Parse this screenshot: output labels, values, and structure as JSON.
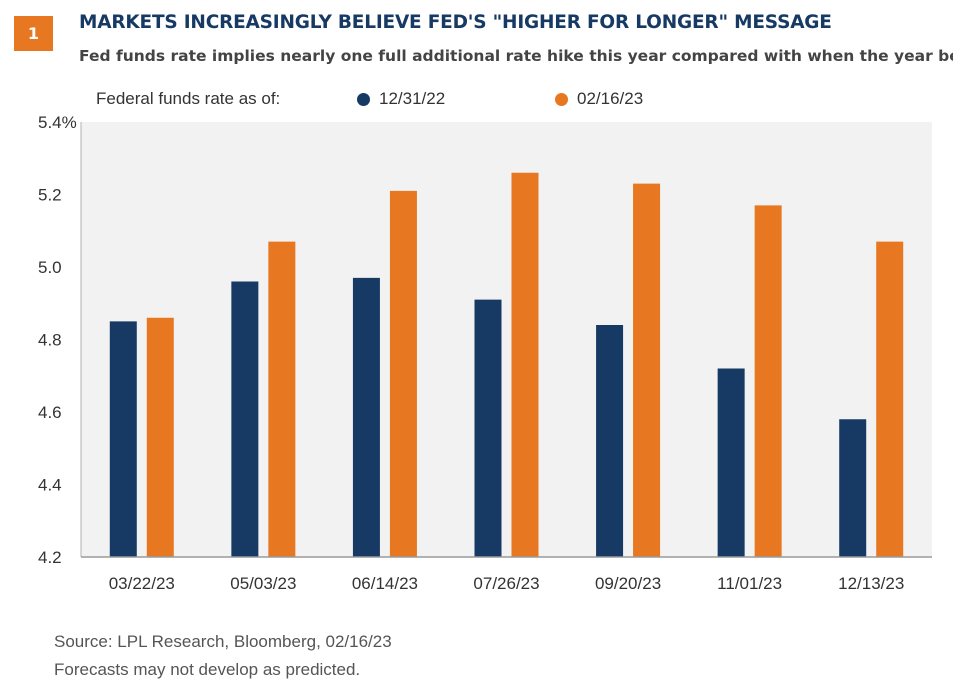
{
  "header": {
    "badge_number": "1",
    "title": "MARKETS INCREASINGLY BELIEVE FED'S \"HIGHER FOR LONGER\" MESSAGE",
    "subtitle": "Fed funds rate implies nearly one full additional rate hike this year compared with when the year began"
  },
  "legend": {
    "title": "Federal funds rate as of:"
  },
  "colors": {
    "accent": "#e87722",
    "navy": "#173a64",
    "orange": "#e87722",
    "plot_background": "#f2f2f2"
  },
  "chart_data": {
    "type": "bar",
    "categories": [
      "03/22/23",
      "05/03/23",
      "06/14/23",
      "07/26/23",
      "09/20/23",
      "11/01/23",
      "12/13/23"
    ],
    "series": [
      {
        "name": "12/31/22",
        "color": "#173a64",
        "values": [
          4.85,
          4.96,
          4.97,
          4.91,
          4.84,
          4.72,
          4.58
        ]
      },
      {
        "name": "02/16/23",
        "color": "#e87722",
        "values": [
          4.86,
          5.07,
          5.21,
          5.26,
          5.23,
          5.17,
          5.07
        ]
      }
    ],
    "ylim": [
      4.2,
      5.4
    ],
    "yticks": [
      4.2,
      4.4,
      4.6,
      4.8,
      5.0,
      5.2,
      5.4
    ],
    "ytick_labels": [
      "4.2",
      "4.4",
      "4.6",
      "4.8",
      "5.0",
      "5.2",
      "5.4%"
    ],
    "title": "",
    "xlabel": "",
    "ylabel": "",
    "grid": false,
    "legend_position": "top"
  },
  "footer": {
    "source": "Source: LPL Research, Bloomberg, 02/16/23",
    "disclaimer": "Forecasts may not develop as predicted."
  }
}
